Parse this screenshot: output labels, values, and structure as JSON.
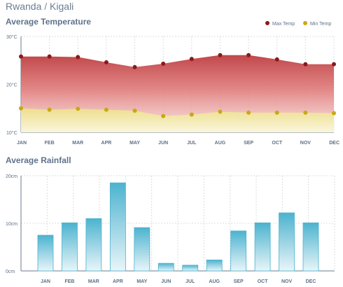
{
  "header": {
    "country": "Rwanda",
    "separator": "/",
    "city": "Kigali"
  },
  "chart_data": [
    {
      "type": "area",
      "title": "Average Temperature",
      "categories": [
        "JAN",
        "FEB",
        "MAR",
        "APR",
        "MAY",
        "JUN",
        "JUL",
        "AUG",
        "SEP",
        "OCT",
        "NOV",
        "DEC"
      ],
      "y_ticks": [
        "10°C",
        "20°C",
        "30°C"
      ],
      "ylim": [
        10,
        30
      ],
      "legend_position": "top-right",
      "grid": true,
      "series": [
        {
          "name": "Max Temp",
          "color": "#8b1a1a",
          "values": [
            25.8,
            25.8,
            25.7,
            24.6,
            23.6,
            24.3,
            25.3,
            26.1,
            26.1,
            25.2,
            24.2,
            24.2
          ]
        },
        {
          "name": "Min Temp",
          "color": "#c9a814",
          "values": [
            15.0,
            14.7,
            14.9,
            14.7,
            14.5,
            13.4,
            13.7,
            14.3,
            14.1,
            14.1,
            14.1,
            14.0
          ]
        }
      ]
    },
    {
      "type": "bar",
      "title": "Average Rainfall",
      "categories": [
        "JAN",
        "FEB",
        "MAR",
        "APR",
        "MAY",
        "JUN",
        "JUL",
        "AUG",
        "SEP",
        "OCT",
        "NOV",
        "DEC"
      ],
      "y_ticks": [
        "0cm",
        "10cm",
        "20cm"
      ],
      "ylim": [
        0,
        20
      ],
      "grid": true,
      "color": "#4cb3cf",
      "values": [
        7.5,
        10.1,
        11.0,
        18.5,
        9.1,
        1.6,
        1.2,
        2.3,
        8.4,
        10.1,
        12.2,
        10.1
      ]
    }
  ]
}
